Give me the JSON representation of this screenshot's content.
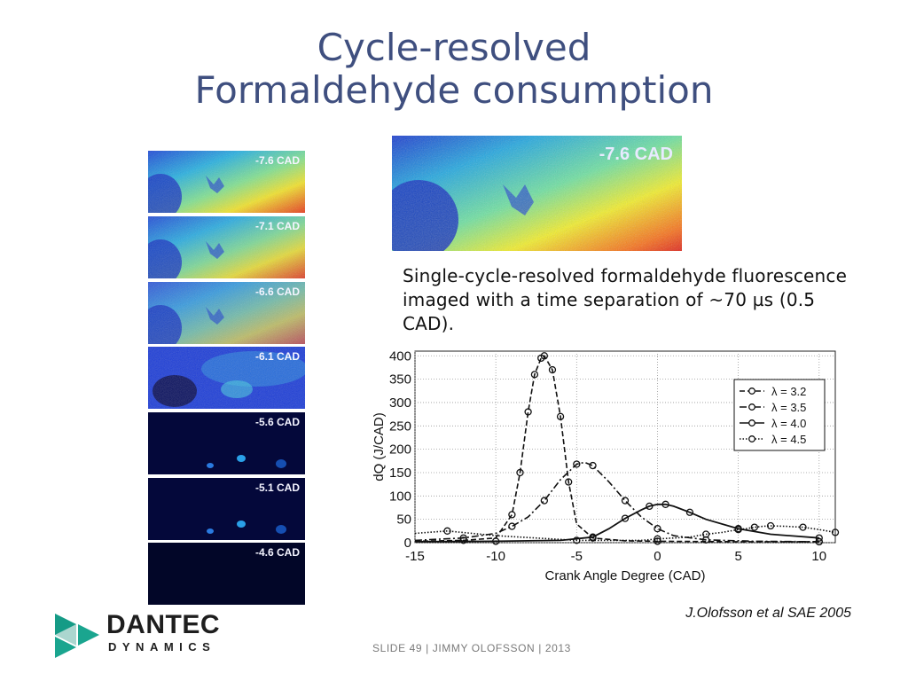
{
  "slide": {
    "title_line1": "Cycle-resolved",
    "title_line2": "Formaldehyde consumption",
    "caption": "Single-cycle-resolved formaldehyde fluorescence imaged with a time separation of ~70 µs (0.5 CAD).",
    "credit": "J.Olofsson et al SAE 2005",
    "footer": "SLIDE 49  |  JIMMY OLOFSSON  |  2013",
    "logo_line1": "DANTEC",
    "logo_line2": "DYNAMICS",
    "brand_color": "#1aa58f"
  },
  "frames": [
    {
      "label": "-7.6 CAD",
      "intensity": 1.0
    },
    {
      "label": "-7.1 CAD",
      "intensity": 0.95
    },
    {
      "label": "-6.6 CAD",
      "intensity": 0.75
    },
    {
      "label": "-6.1 CAD",
      "intensity": 0.45
    },
    {
      "label": "-5.6 CAD",
      "intensity": 0.12
    },
    {
      "label": "-5.1 CAD",
      "intensity": 0.08
    },
    {
      "label": "-4.6 CAD",
      "intensity": 0.0
    }
  ],
  "big_frame": {
    "label": "-7.6 CAD"
  },
  "chart_data": {
    "type": "line",
    "xlabel": "Crank Angle Degree (CAD)",
    "ylabel": "dQ (J/CAD)",
    "xlim": [
      -15,
      11
    ],
    "ylim": [
      0,
      410
    ],
    "xticks": [
      -15,
      -10,
      -5,
      0,
      5,
      10
    ],
    "yticks": [
      0,
      50,
      100,
      150,
      200,
      250,
      300,
      350,
      400
    ],
    "grid": true,
    "legend_position": "top-right",
    "series": [
      {
        "name": "λ = 3.2",
        "style": "dashed-marker",
        "x": [
          -15,
          -12,
          -10,
          -9,
          -8.5,
          -8,
          -7.6,
          -7.2,
          -7,
          -6.5,
          -6,
          -5.5,
          -5,
          -4,
          -2,
          0,
          5,
          10
        ],
        "y": [
          3,
          5,
          10,
          60,
          150,
          280,
          360,
          395,
          400,
          370,
          270,
          130,
          40,
          10,
          4,
          3,
          2,
          2
        ]
      },
      {
        "name": "λ = 3.5",
        "style": "dashdot-marker",
        "x": [
          -15,
          -12,
          -10,
          -9,
          -8,
          -7,
          -6,
          -5,
          -4.5,
          -4,
          -3,
          -2,
          -1,
          0,
          1,
          3,
          6,
          10
        ],
        "y": [
          5,
          10,
          20,
          35,
          55,
          90,
          135,
          168,
          172,
          165,
          130,
          90,
          55,
          30,
          15,
          6,
          3,
          2
        ]
      },
      {
        "name": "λ = 4.0",
        "style": "solid-marker",
        "x": [
          -15,
          -10,
          -6,
          -4,
          -3,
          -2,
          -1,
          -0.5,
          0,
          0.5,
          1,
          2,
          3,
          5,
          7,
          10
        ],
        "y": [
          2,
          3,
          5,
          12,
          30,
          52,
          70,
          78,
          82,
          82,
          78,
          65,
          50,
          30,
          18,
          10
        ]
      },
      {
        "name": "λ = 4.5",
        "style": "dotted-marker",
        "x": [
          -15,
          -13,
          -10,
          -5,
          -1,
          0,
          2,
          3,
          4,
          5,
          5.5,
          6,
          6.5,
          7,
          8,
          9,
          10,
          11
        ],
        "y": [
          20,
          25,
          15,
          5,
          5,
          8,
          12,
          18,
          22,
          28,
          30,
          33,
          35,
          36,
          35,
          33,
          28,
          22
        ]
      }
    ]
  }
}
